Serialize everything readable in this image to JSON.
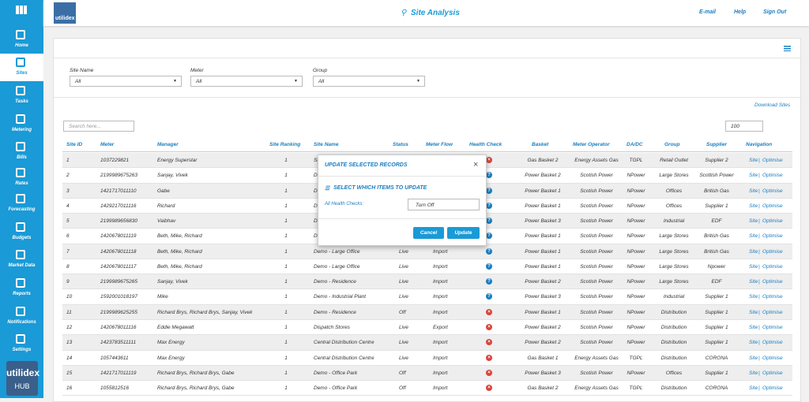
{
  "header": {
    "logo": "utilidex",
    "title": "Site Analysis",
    "links": [
      "E-mail",
      "Help",
      "Sign Out"
    ]
  },
  "sidebar": {
    "items": [
      "Home",
      "Sites",
      "Tasks",
      "Metering",
      "Bills",
      "Rates",
      "Forecasting",
      "Budgets",
      "Market Data",
      "Reports",
      "Notifications",
      "Settings"
    ],
    "logo": "utilidex",
    "logo_sub": "HUB"
  },
  "filters": [
    {
      "label": "Site Name",
      "value": "All"
    },
    {
      "label": "Meter",
      "value": "All"
    },
    {
      "label": "Group",
      "value": "All"
    }
  ],
  "download": "Download Sites",
  "search_placeholder": "Search here...",
  "page_size": "100",
  "table": {
    "headers": [
      "Site ID",
      "Meter",
      "Manager",
      "Site Ranking",
      "Site Name",
      "Status",
      "Meter Flow",
      "Health Check",
      "Basket",
      "Meter Operator",
      "DA/DC",
      "Group",
      "Supplier",
      "Navigation"
    ],
    "nav_labels": [
      "Site",
      "Optimise"
    ],
    "rows": [
      [
        "1",
        "1037229821",
        "Energy Superstar",
        "1",
        "St",
        null,
        null,
        "×",
        "Gas Basket 2",
        "Energy Assets Gas",
        "TGPL",
        "Retail Outlet",
        "Supplier 2"
      ],
      [
        "2",
        "2199989675263",
        "Sanjay, Vivek",
        "1",
        "D",
        null,
        null,
        "?",
        "Power Basket 2",
        "Scotish Power",
        "NPower",
        "Large Stores",
        "Scottish Power"
      ],
      [
        "3",
        "1421717011110",
        "Gabe",
        "1",
        "D",
        null,
        null,
        "?",
        "Power Basket 1",
        "Scotish Power",
        "NPower",
        "Offices",
        "British Gas"
      ],
      [
        "4",
        "1429217011116",
        "Richard",
        "1",
        "D",
        null,
        null,
        "?",
        "Power Basket 1",
        "Scotish Power",
        "NPower",
        "Offices",
        "Supplier 1"
      ],
      [
        "5",
        "2199989656830",
        "Vaibhav",
        "1",
        "D",
        null,
        null,
        "?",
        "Power Basket 3",
        "Scotish Power",
        "NPower",
        "Industrial",
        "EDF"
      ],
      [
        "6",
        "1420678011119",
        "Beth, Mike, Richard",
        "1",
        "D",
        null,
        null,
        "?",
        "Power Basket 1",
        "Scotish Power",
        "NPower",
        "Large Stores",
        "British Gas"
      ],
      [
        "7",
        "1420678011118",
        "Beth, Mike, Richard",
        "1",
        "Demo - Large Office",
        "Live",
        "Import",
        "?",
        "Power Basket 1",
        "Scotish Power",
        "NPower",
        "Large Stores",
        "British Gas"
      ],
      [
        "8",
        "1420678011117",
        "Beth, Mike, Richard",
        "1",
        "Demo - Large Office",
        "Live",
        "Import",
        "?",
        "Power Basket 1",
        "Scotish Power",
        "NPower",
        "Large Stores",
        "Npower"
      ],
      [
        "9",
        "2199989675265",
        "Sanjay, Vivek",
        "1",
        "Demo - Residence",
        "Live",
        "Import",
        "?",
        "Power Basket 2",
        "Scotish Power",
        "NPower",
        "Large Stores",
        "EDF"
      ],
      [
        "10",
        "1592001018197",
        "Mike",
        "1",
        "Demo - Industrial Plant",
        "Live",
        "Import",
        "?",
        "Power Basket 3",
        "Scotish Power",
        "NPower",
        "Industrial",
        "Supplier 1"
      ],
      [
        "11",
        "2199989625255",
        "Richard Brys, Richard Brys, Sanjay, Vivek",
        "1",
        "Demo - Residence",
        "Off",
        "Import",
        "×",
        "Power Basket 1",
        "Scotish Power",
        "NPower",
        "Distribution",
        "Supplier 1"
      ],
      [
        "12",
        "1420678011116",
        "Eddie Megawatt",
        "1",
        "Dispatch Stores",
        "Live",
        "Export",
        "×",
        "Power Basket 2",
        "Scotish Power",
        "NPower",
        "Distribution",
        "Supplier 1"
      ],
      [
        "13",
        "1423783511111",
        "Max Energy",
        "1",
        "Central Distribution Centre",
        "Live",
        "Import",
        "×",
        "Power Basket 2",
        "Scotish Power",
        "NPower",
        "Distribution",
        "Supplier 1"
      ],
      [
        "14",
        "1057443611",
        "Max Energy",
        "1",
        "Central Distribution Centre",
        "Live",
        "Import",
        "×",
        "Gas Basket 1",
        "Energy Assets Gas",
        "TGPL",
        "Distribution",
        "CORONA"
      ],
      [
        "15",
        "1421717011119",
        "Richard Brys, Richard Brys, Gabe",
        "1",
        "Demo - Office Park",
        "Off",
        "Import",
        "×",
        "Power Basket 3",
        "Scotish Power",
        "NPower",
        "Offices",
        "Supplier 1"
      ],
      [
        "16",
        "1055812516",
        "Richard Brys, Richard Brys, Gabe",
        "1",
        "Demo - Office Park",
        "Off",
        "Import",
        "×",
        "Gas Basket 2",
        "Energy Assets Gas",
        "TGPL",
        "Distribution",
        "CORONA"
      ]
    ]
  },
  "modal": {
    "title": "UPDATE SELECTED RECORDS",
    "close": "×",
    "subtitle": "SELECT WHICH ITEMS TO UPDATE",
    "field_label": "All Health Checks:",
    "field_value": "Turn Off",
    "buttons": [
      "Cancel",
      "Update"
    ]
  }
}
